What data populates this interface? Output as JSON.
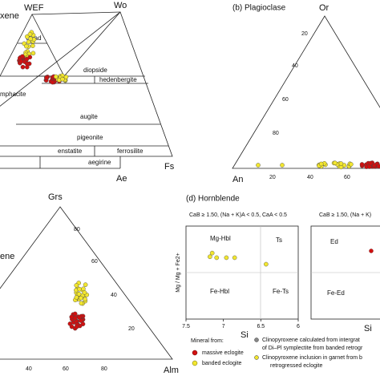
{
  "panel_a": {
    "labels": [
      "xene",
      "WEF",
      "Wo",
      "Quad",
      "diopside",
      "hedenbergite",
      "mphacite",
      "augite",
      "pigeonite",
      "enstatite",
      "ferrosilite",
      "aegirine",
      "Ae",
      "Fs"
    ]
  },
  "panel_b": {
    "title": "(b) Plagioclase",
    "apex": "Or",
    "corner": "An",
    "side_ticks": [
      "20",
      "40",
      "60",
      "80"
    ],
    "base_ticks": [
      "20",
      "40",
      "60"
    ]
  },
  "panel_c": {
    "apex": "Grs",
    "side_label": "ene",
    "corner": "Alm",
    "side_ticks": [
      "80",
      "60",
      "40",
      "20"
    ],
    "base_ticks": [
      "40",
      "60",
      "80"
    ]
  },
  "chart_data": {
    "type": "scatter",
    "title": "(d) Hornblende",
    "subtitle": "CaB ≥ 1.50, (Na + K)A < 0.5, CaA < 0.5",
    "subtitle_right": "CaB ≥ 1.50, (Na + K)",
    "x_label": "Si",
    "y_label": "Mg / Mg + Fe2+",
    "xlim": [
      7.5,
      6.0
    ],
    "ylim": [
      0,
      1
    ],
    "xticks": [
      7.5,
      7.0,
      6.5,
      6.0
    ],
    "fields": [
      "Mg-Hbl",
      "Ts",
      "Fe-Hbl",
      "Fe-Ts"
    ],
    "fields_right": [
      "Ed",
      "Fe-Ed"
    ],
    "series": [
      {
        "name": "banded eclogite",
        "color": "#f2e62e",
        "x": [
          7.15,
          7.09,
          6.96,
          7.18,
          6.85,
          6.43
        ],
        "values": [
          0.71,
          0.66,
          0.66,
          0.67,
          0.66,
          0.59
        ]
      }
    ]
  },
  "legend": {
    "title": "Mineral from:",
    "items": [
      "massive eclogite",
      "banded eclogite"
    ],
    "notes": [
      "Clinopyroxene calculated from intergrat",
      "of Di–Pl symplectite from banded retrogr",
      "Clinopyroxene inclusion in garnet from b",
      "retrogressed eclogite"
    ]
  }
}
